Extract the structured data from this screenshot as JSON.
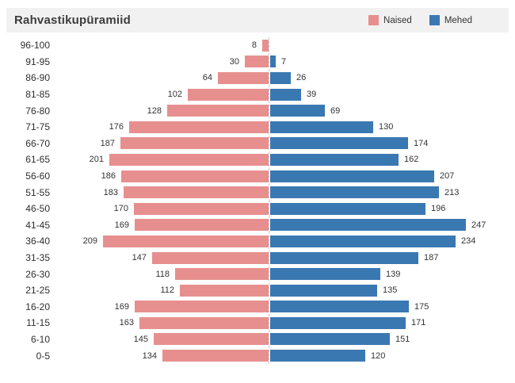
{
  "header": {
    "title": "Rahvastikupüramiid"
  },
  "legend": [
    {
      "label": "Naised",
      "color": "#e78f8f"
    },
    {
      "label": "Mehed",
      "color": "#3a78b2"
    }
  ],
  "colors": {
    "header_background": "#f1f1f1",
    "naised": "#e78f8f",
    "mehed": "#3a78b2",
    "center_line": "#c9c9c9"
  },
  "chart_data": {
    "type": "bar",
    "subtype": "population-pyramid",
    "title": "Rahvastikupüramiid",
    "xlabel": "",
    "ylabel": "",
    "legend_position": "top-right",
    "grid": false,
    "value_labels": true,
    "axis_range_each_side": [
      0,
      250
    ],
    "categories": [
      "96-100",
      "91-95",
      "86-90",
      "81-85",
      "76-80",
      "71-75",
      "66-70",
      "61-65",
      "56-60",
      "51-55",
      "46-50",
      "41-45",
      "36-40",
      "31-35",
      "26-30",
      "21-25",
      "16-20",
      "11-15",
      "6-10",
      "0-5"
    ],
    "series": [
      {
        "name": "Naised",
        "side": "left",
        "color": "#e78f8f",
        "values": [
          8,
          30,
          64,
          102,
          128,
          176,
          187,
          201,
          186,
          183,
          170,
          169,
          209,
          147,
          118,
          112,
          169,
          163,
          145,
          134
        ]
      },
      {
        "name": "Mehed",
        "side": "right",
        "color": "#3a78b2",
        "values": [
          null,
          7,
          26,
          39,
          69,
          130,
          174,
          162,
          207,
          213,
          196,
          247,
          234,
          187,
          139,
          135,
          175,
          171,
          151,
          120
        ]
      }
    ]
  }
}
